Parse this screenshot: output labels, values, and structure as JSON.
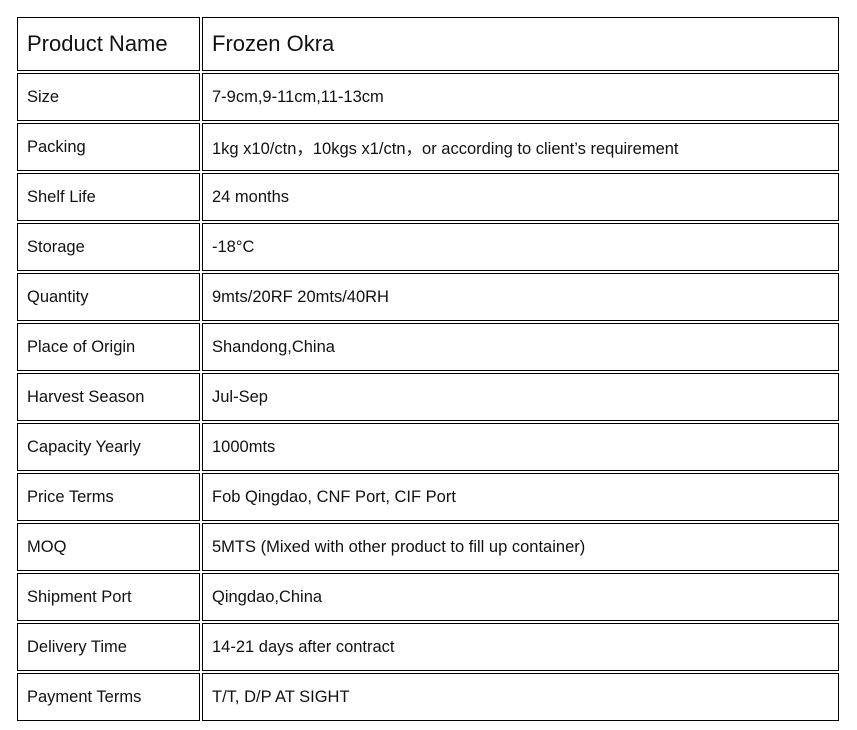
{
  "header": {
    "label": "Product Name",
    "value": "Frozen Okra"
  },
  "rows": [
    {
      "label": "Size",
      "value": "7-9cm,9-11cm,11-13cm"
    },
    {
      "label": "Packing",
      "value": "1kg x10/ctn，10kgs x1/ctn，or according to client’s requirement"
    },
    {
      "label": "Shelf Life",
      "value": "24 months"
    },
    {
      "label": "Storage",
      "value": "-18°C"
    },
    {
      "label": "Quantity",
      "value": "9mts/20RF  20mts/40RH"
    },
    {
      "label": "Place of Origin",
      "value": "Shandong,China"
    },
    {
      "label": "Harvest Season",
      "value": "Jul-Sep"
    },
    {
      "label": "Capacity Yearly",
      "value": "1000mts"
    },
    {
      "label": "Price Terms",
      "value": "Fob Qingdao, CNF Port, CIF Port"
    },
    {
      "label": "MOQ",
      "value": "5MTS  (Mixed with other product to fill up container)"
    },
    {
      "label": "Shipment Port",
      "value": "Qingdao,China"
    },
    {
      "label": "Delivery Time",
      "value": "14-21 days after contract"
    },
    {
      "label": "Payment Terms",
      "value": "T/T, D/P AT SIGHT"
    }
  ]
}
